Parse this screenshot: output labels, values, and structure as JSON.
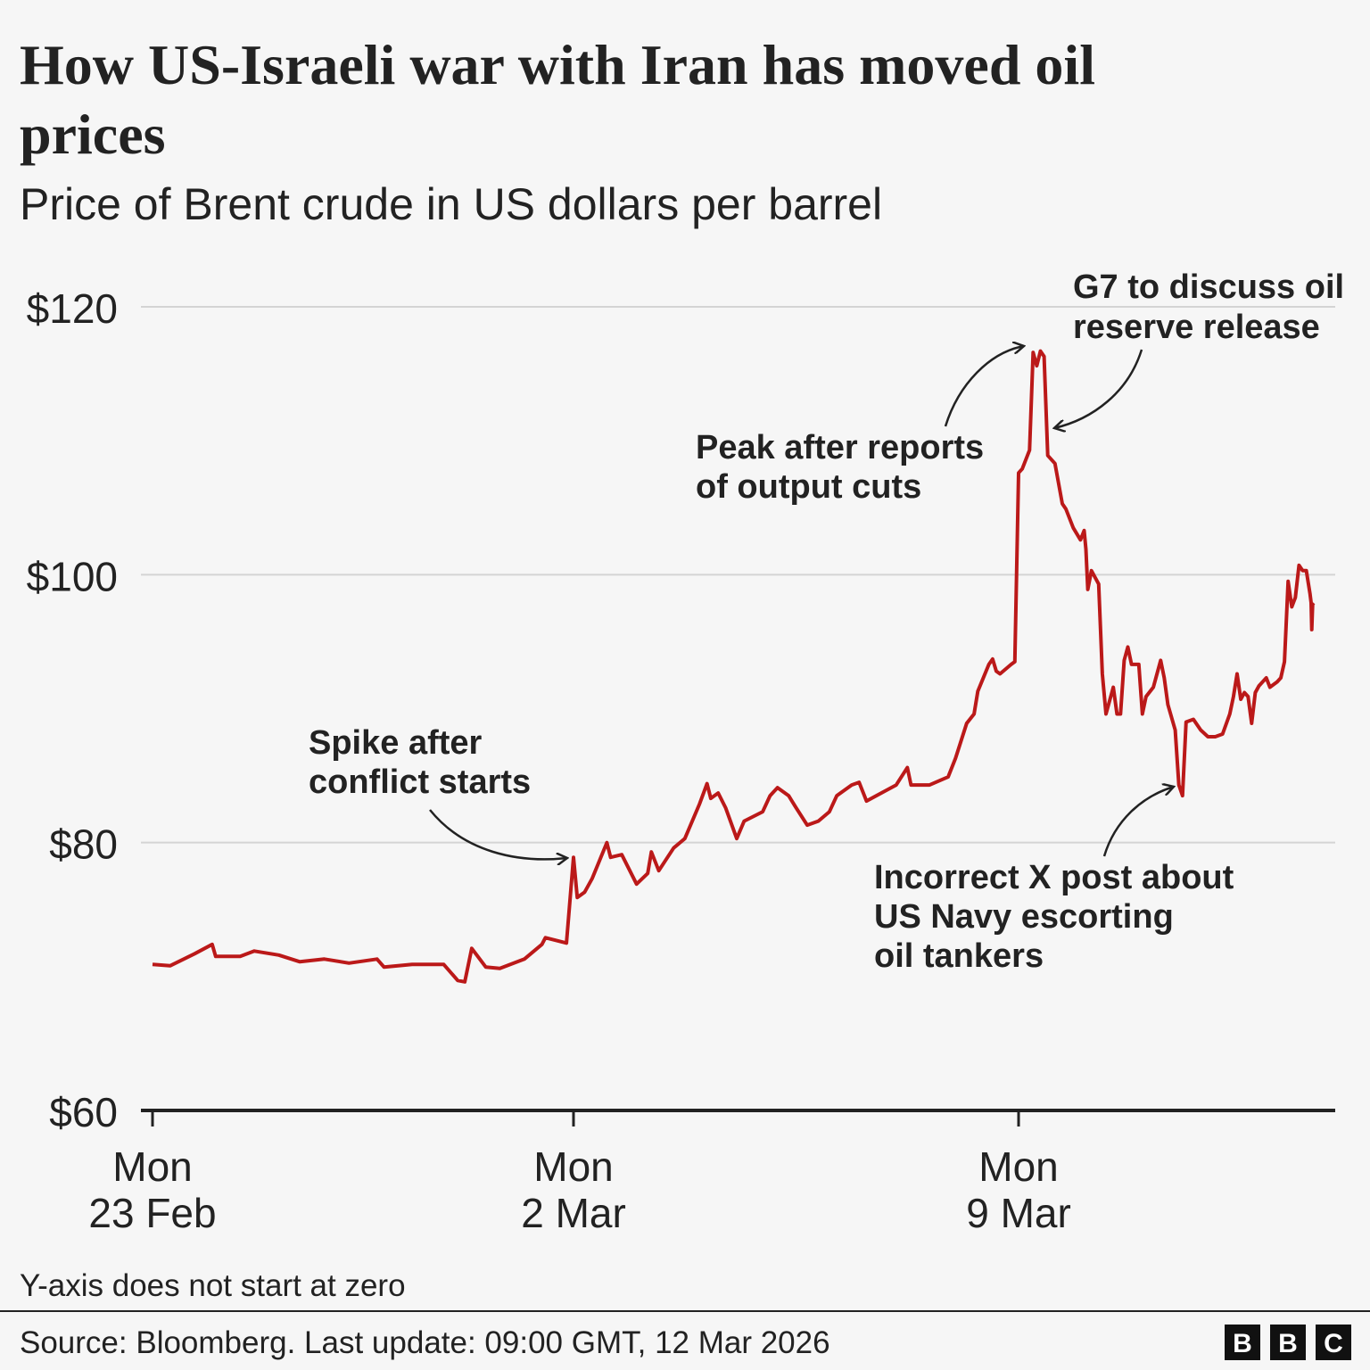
{
  "header": {
    "title_line1": "How US-Israeli war with Iran has moved oil",
    "title_line2": "prices",
    "subtitle": "Price of Brent crude in US dollars per barrel"
  },
  "chart_data": {
    "type": "line",
    "title": "How US-Israeli war with Iran has moved oil prices",
    "subtitle": "Price of Brent crude in US dollars per barrel",
    "xlabel": "",
    "ylabel": "",
    "ylim": [
      60,
      120
    ],
    "y_ticks": [
      {
        "value": 120,
        "label": "$120"
      },
      {
        "value": 100,
        "label": "$100"
      },
      {
        "value": 80,
        "label": "$80"
      },
      {
        "value": 60,
        "label": "$60"
      }
    ],
    "x_ticks": [
      {
        "date": "2026-02-23",
        "label_line1": "Mon",
        "label_line2": "23 Feb"
      },
      {
        "date": "2026-03-02",
        "label_line1": "Mon",
        "label_line2": "2 Mar"
      },
      {
        "date": "2026-03-09",
        "label_line1": "Mon",
        "label_line2": "9 Mar"
      }
    ],
    "grid": "horizontal",
    "line_color": "#bb1919",
    "series": [
      {
        "points": [
          [
            "2026-02-23 00:00",
            70.9
          ],
          [
            "2026-02-23 05:00",
            70.8
          ],
          [
            "2026-02-23 12:00",
            71.7
          ],
          [
            "2026-02-23 17:00",
            72.4
          ],
          [
            "2026-02-23 18:00",
            71.5
          ],
          [
            "2026-02-24 01:00",
            71.5
          ],
          [
            "2026-02-24 05:00",
            71.9
          ],
          [
            "2026-02-24 12:00",
            71.6
          ],
          [
            "2026-02-24 18:00",
            71.1
          ],
          [
            "2026-02-25 01:00",
            71.3
          ],
          [
            "2026-02-25 08:00",
            71.0
          ],
          [
            "2026-02-25 16:00",
            71.3
          ],
          [
            "2026-02-25 18:00",
            70.7
          ],
          [
            "2026-02-26 02:00",
            70.9
          ],
          [
            "2026-02-26 11:00",
            70.9
          ],
          [
            "2026-02-26 15:00",
            69.7
          ],
          [
            "2026-02-26 17:00",
            69.6
          ],
          [
            "2026-02-26 19:00",
            72.1
          ],
          [
            "2026-02-26 23:00",
            70.7
          ],
          [
            "2026-02-27 03:00",
            70.6
          ],
          [
            "2026-02-27 10:00",
            71.3
          ],
          [
            "2026-02-27 15:00",
            72.4
          ],
          [
            "2026-02-27 16:00",
            72.9
          ],
          [
            "2026-02-27 22:00",
            72.5
          ],
          [
            "2026-03-02 00:00",
            78.9
          ],
          [
            "2026-03-02 01:00",
            75.9
          ],
          [
            "2026-03-02 03:00",
            76.3
          ],
          [
            "2026-03-02 05:00",
            77.3
          ],
          [
            "2026-03-02 09:00",
            80.0
          ],
          [
            "2026-03-02 10:00",
            78.9
          ],
          [
            "2026-03-02 13:00",
            79.1
          ],
          [
            "2026-03-02 17:00",
            76.9
          ],
          [
            "2026-03-02 20:00",
            77.7
          ],
          [
            "2026-03-02 21:00",
            79.3
          ],
          [
            "2026-03-02 23:00",
            77.9
          ],
          [
            "2026-03-03 03:00",
            79.6
          ],
          [
            "2026-03-03 06:00",
            80.3
          ],
          [
            "2026-03-03 10:00",
            82.9
          ],
          [
            "2026-03-03 12:00",
            84.4
          ],
          [
            "2026-03-03 13:00",
            83.3
          ],
          [
            "2026-03-03 15:00",
            83.7
          ],
          [
            "2026-03-03 17:00",
            82.6
          ],
          [
            "2026-03-03 20:00",
            80.3
          ],
          [
            "2026-03-03 22:00",
            81.6
          ],
          [
            "2026-03-04 03:00",
            82.3
          ],
          [
            "2026-03-04 05:00",
            83.5
          ],
          [
            "2026-03-04 07:00",
            84.1
          ],
          [
            "2026-03-04 10:00",
            83.5
          ],
          [
            "2026-03-04 12:00",
            82.6
          ],
          [
            "2026-03-04 15:00",
            81.3
          ],
          [
            "2026-03-04 18:00",
            81.6
          ],
          [
            "2026-03-04 21:00",
            82.3
          ],
          [
            "2026-03-04 23:00",
            83.5
          ],
          [
            "2026-03-05 03:00",
            84.3
          ],
          [
            "2026-03-05 05:00",
            84.5
          ],
          [
            "2026-03-05 07:00",
            83.1
          ],
          [
            "2026-03-05 11:00",
            83.7
          ],
          [
            "2026-03-05 15:00",
            84.3
          ],
          [
            "2026-03-05 18:00",
            85.6
          ],
          [
            "2026-03-05 19:00",
            84.3
          ],
          [
            "2026-03-06 00:00",
            84.3
          ],
          [
            "2026-03-06 05:00",
            84.9
          ],
          [
            "2026-03-06 07:00",
            86.3
          ],
          [
            "2026-03-06 10:00",
            88.9
          ],
          [
            "2026-03-06 12:00",
            89.6
          ],
          [
            "2026-03-06 13:00",
            91.3
          ],
          [
            "2026-03-06 16:00",
            93.3
          ],
          [
            "2026-03-06 17:00",
            93.7
          ],
          [
            "2026-03-06 18:00",
            92.8
          ],
          [
            "2026-03-06 19:00",
            92.6
          ],
          [
            "2026-03-06 22:00",
            93.3
          ],
          [
            "2026-03-06 23:00",
            93.5
          ],
          [
            "2026-03-09 00:00",
            107.6
          ],
          [
            "2026-03-09 01:00",
            107.9
          ],
          [
            "2026-03-09 02:00",
            108.6
          ],
          [
            "2026-03-09 03:00",
            109.3
          ],
          [
            "2026-03-09 04:00",
            116.6
          ],
          [
            "2026-03-09 05:00",
            115.6
          ],
          [
            "2026-03-09 06:00",
            116.7
          ],
          [
            "2026-03-09 07:00",
            116.3
          ],
          [
            "2026-03-09 08:00",
            108.9
          ],
          [
            "2026-03-09 10:00",
            108.3
          ],
          [
            "2026-03-09 12:00",
            105.3
          ],
          [
            "2026-03-09 13:00",
            104.9
          ],
          [
            "2026-03-09 15:00",
            103.5
          ],
          [
            "2026-03-09 17:00",
            102.6
          ],
          [
            "2026-03-09 18:00",
            103.3
          ],
          [
            "2026-03-09 18:30",
            101.9
          ],
          [
            "2026-03-09 19:00",
            98.9
          ],
          [
            "2026-03-09 20:00",
            100.3
          ],
          [
            "2026-03-09 22:00",
            99.3
          ],
          [
            "2026-03-09 23:00",
            92.6
          ],
          [
            "2026-03-10 00:00",
            89.6
          ],
          [
            "2026-03-10 02:00",
            91.6
          ],
          [
            "2026-03-10 03:00",
            89.6
          ],
          [
            "2026-03-10 04:00",
            89.6
          ],
          [
            "2026-03-10 05:00",
            93.6
          ],
          [
            "2026-03-10 06:00",
            94.6
          ],
          [
            "2026-03-10 07:00",
            93.3
          ],
          [
            "2026-03-10 09:00",
            93.3
          ],
          [
            "2026-03-10 10:00",
            89.6
          ],
          [
            "2026-03-10 11:00",
            90.9
          ],
          [
            "2026-03-10 13:00",
            91.6
          ],
          [
            "2026-03-10 15:00",
            93.6
          ],
          [
            "2026-03-10 16:00",
            92.3
          ],
          [
            "2026-03-10 17:00",
            90.3
          ],
          [
            "2026-03-10 19:00",
            88.4
          ],
          [
            "2026-03-10 20:00",
            84.3
          ],
          [
            "2026-03-10 21:00",
            83.5
          ],
          [
            "2026-03-10 22:00",
            89.0
          ],
          [
            "2026-03-11 00:00",
            89.2
          ],
          [
            "2026-03-11 02:00",
            88.4
          ],
          [
            "2026-03-11 04:00",
            87.9
          ],
          [
            "2026-03-11 06:00",
            87.9
          ],
          [
            "2026-03-11 08:00",
            88.1
          ],
          [
            "2026-03-11 10:00",
            89.6
          ],
          [
            "2026-03-11 11:00",
            90.9
          ],
          [
            "2026-03-11 12:00",
            92.6
          ],
          [
            "2026-03-11 13:00",
            90.7
          ],
          [
            "2026-03-11 14:00",
            91.2
          ],
          [
            "2026-03-11 15:00",
            90.9
          ],
          [
            "2026-03-11 16:00",
            88.9
          ],
          [
            "2026-03-11 17:00",
            91.2
          ],
          [
            "2026-03-11 18:00",
            91.7
          ],
          [
            "2026-03-11 20:00",
            92.3
          ],
          [
            "2026-03-11 21:00",
            91.6
          ],
          [
            "2026-03-11 23:00",
            92.0
          ],
          [
            "2026-03-12 00:00",
            92.3
          ],
          [
            "2026-03-12 01:00",
            93.5
          ],
          [
            "2026-03-12 02:00",
            99.5
          ],
          [
            "2026-03-12 03:00",
            97.6
          ],
          [
            "2026-03-12 04:00",
            98.3
          ],
          [
            "2026-03-12 05:00",
            100.7
          ],
          [
            "2026-03-12 06:00",
            100.3
          ],
          [
            "2026-03-12 07:00",
            100.3
          ],
          [
            "2026-03-12 08:00",
            98.6
          ],
          [
            "2026-03-12 08:20",
            97.9
          ],
          [
            "2026-03-12 08:30",
            95.9
          ],
          [
            "2026-03-12 08:45",
            97.8
          ],
          [
            "2026-03-12 09:00",
            97.7
          ]
        ]
      }
    ],
    "annotations": [
      {
        "lines": [
          "Spike after",
          "conflict starts"
        ]
      },
      {
        "lines": [
          "Peak after reports",
          "of output cuts"
        ]
      },
      {
        "lines": [
          "G7 to discuss oil",
          "reserve release"
        ]
      },
      {
        "lines": [
          "Incorrect X post about",
          "US Navy escorting",
          "oil tankers"
        ]
      }
    ]
  },
  "footer": {
    "note": "Y-axis does not start at zero",
    "source": "Source: Bloomberg. Last update: 09:00 GMT, 12 Mar 2026",
    "logo": "BBC"
  }
}
